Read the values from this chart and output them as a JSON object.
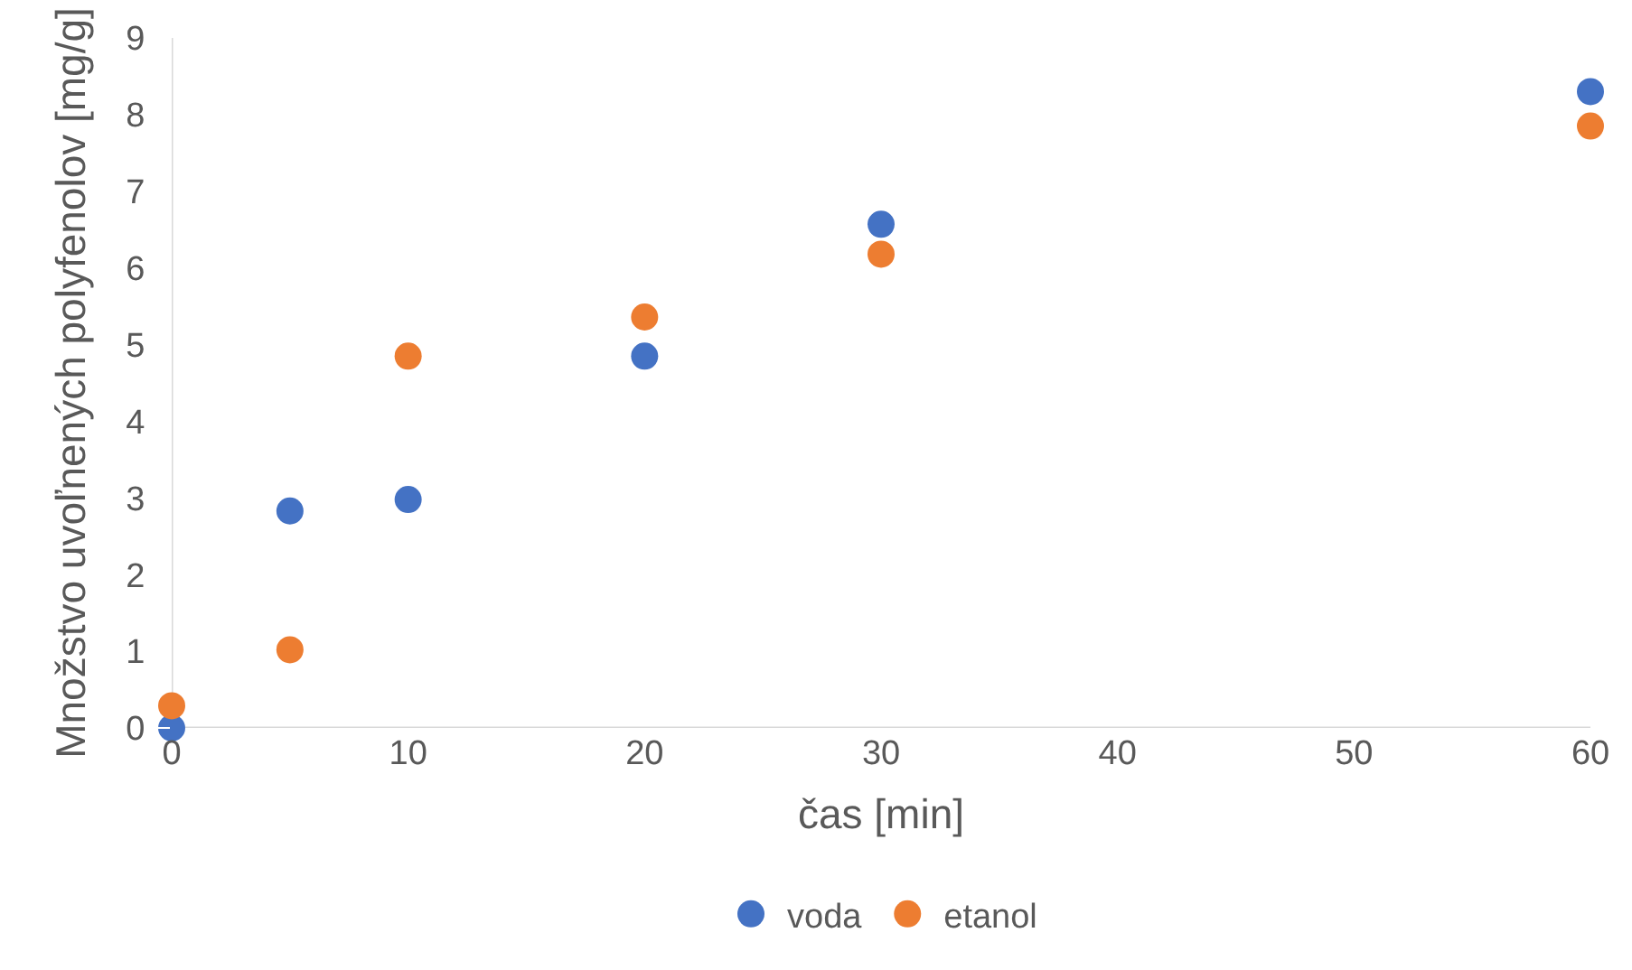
{
  "chart_data": {
    "type": "scatter",
    "xlabel": "čas [min]",
    "ylabel": "Množstvo uvoľnených polyfenolov [mg/g]",
    "x": [
      0,
      5,
      10,
      20,
      30,
      60
    ],
    "series": [
      {
        "name": "voda",
        "color": "#4472c4",
        "values": [
          0.0,
          2.83,
          2.98,
          4.85,
          6.57,
          8.3
        ]
      },
      {
        "name": "etanol",
        "color": "#ed7d31",
        "values": [
          0.29,
          1.02,
          4.85,
          5.36,
          6.18,
          7.85
        ]
      }
    ],
    "xlim": [
      0,
      60
    ],
    "xticks": [
      0,
      10,
      20,
      30,
      40,
      50,
      60
    ],
    "ylim": [
      0,
      9
    ],
    "yticks": [
      0,
      1,
      2,
      3,
      4,
      5,
      6,
      7,
      8,
      9
    ],
    "grid": false,
    "legend": "bottom",
    "marker": "circle"
  }
}
